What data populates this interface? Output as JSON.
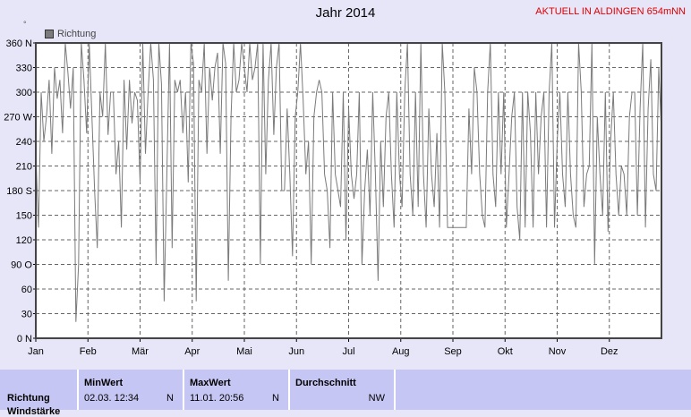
{
  "chart_data": {
    "type": "line",
    "title": "Jahr 2014",
    "station": "AKTUELL IN ALDINGEN 654mNN",
    "unit_mark": "°",
    "legend": [
      "Richtung"
    ],
    "ylim": [
      0,
      360
    ],
    "yticks": [
      {
        "v": 0,
        "label": "0 N"
      },
      {
        "v": 30,
        "label": "30"
      },
      {
        "v": 60,
        "label": "60"
      },
      {
        "v": 90,
        "label": "90 O"
      },
      {
        "v": 120,
        "label": "120"
      },
      {
        "v": 150,
        "label": "150"
      },
      {
        "v": 180,
        "label": "180 S"
      },
      {
        "v": 210,
        "label": "210"
      },
      {
        "v": 240,
        "label": "240"
      },
      {
        "v": 270,
        "label": "270 W"
      },
      {
        "v": 300,
        "label": "300"
      },
      {
        "v": 330,
        "label": "330"
      },
      {
        "v": 360,
        "label": "360 N"
      }
    ],
    "months": [
      "Jan",
      "Feb",
      "Mär",
      "Apr",
      "Mai",
      "Jun",
      "Jul",
      "Aug",
      "Sep",
      "Okt",
      "Nov",
      "Dez"
    ],
    "series": [
      {
        "name": "Richtung",
        "values": [
          225,
          135,
          300,
          240,
          270,
          315,
          225,
          330,
          292,
          315,
          250,
          360,
          325,
          280,
          330,
          20,
          90,
          360,
          315,
          250,
          360,
          270,
          180,
          110,
          300,
          270,
          360,
          248,
          300,
          300,
          200,
          240,
          135,
          315,
          230,
          315,
          262,
          300,
          290,
          190,
          360,
          225,
          300,
          360,
          315,
          90,
          360,
          310,
          45,
          200,
          360,
          110,
          315,
          300,
          315,
          250,
          300,
          190,
          360,
          335,
          45,
          315,
          300,
          360,
          225,
          330,
          290,
          330,
          348,
          225,
          360,
          335,
          70,
          270,
          360,
          300,
          315,
          360,
          330,
          300,
          360,
          315,
          330,
          360,
          90,
          360,
          200,
          315,
          360,
          248,
          330,
          360,
          180,
          180,
          280,
          200,
          100,
          270,
          300,
          360,
          290,
          200,
          240,
          90,
          270,
          300,
          315,
          300,
          200,
          180,
          110,
          300,
          200,
          180,
          160,
          300,
          120,
          280,
          200,
          170,
          200,
          300,
          90,
          180,
          230,
          150,
          300,
          200,
          70,
          240,
          160,
          270,
          300,
          200,
          135,
          300,
          200,
          160,
          300,
          360,
          200,
          150,
          300,
          160,
          360,
          200,
          135,
          280,
          200,
          160,
          250,
          135,
          360,
          300,
          135,
          135,
          135,
          135,
          135,
          135,
          135,
          135,
          280,
          200,
          330,
          300,
          200,
          150,
          135,
          300,
          360,
          200,
          160,
          300,
          200,
          300,
          135,
          200,
          270,
          300,
          160,
          120,
          300,
          135,
          300,
          250,
          135,
          300,
          200,
          270,
          300,
          135,
          300,
          360,
          135,
          240,
          300,
          200,
          160,
          300,
          200,
          150,
          135,
          360,
          300,
          160,
          200,
          210,
          360,
          90,
          270,
          200,
          150,
          300,
          130,
          240,
          300,
          200,
          150,
          210,
          200,
          150,
          270,
          300,
          300,
          150,
          280,
          360,
          135,
          280,
          340,
          200,
          180,
          330,
          250
        ]
      }
    ]
  },
  "table": {
    "row_label": "Richtung",
    "row_label_next": "Windstärke",
    "min": {
      "header": "MinWert",
      "value": "02.03.  12:34",
      "dir": "N"
    },
    "max": {
      "header": "MaxWert",
      "value": "11.01.  20:56",
      "dir": "N"
    },
    "avg": {
      "header": "Durchschnitt",
      "dir": "NW"
    }
  }
}
